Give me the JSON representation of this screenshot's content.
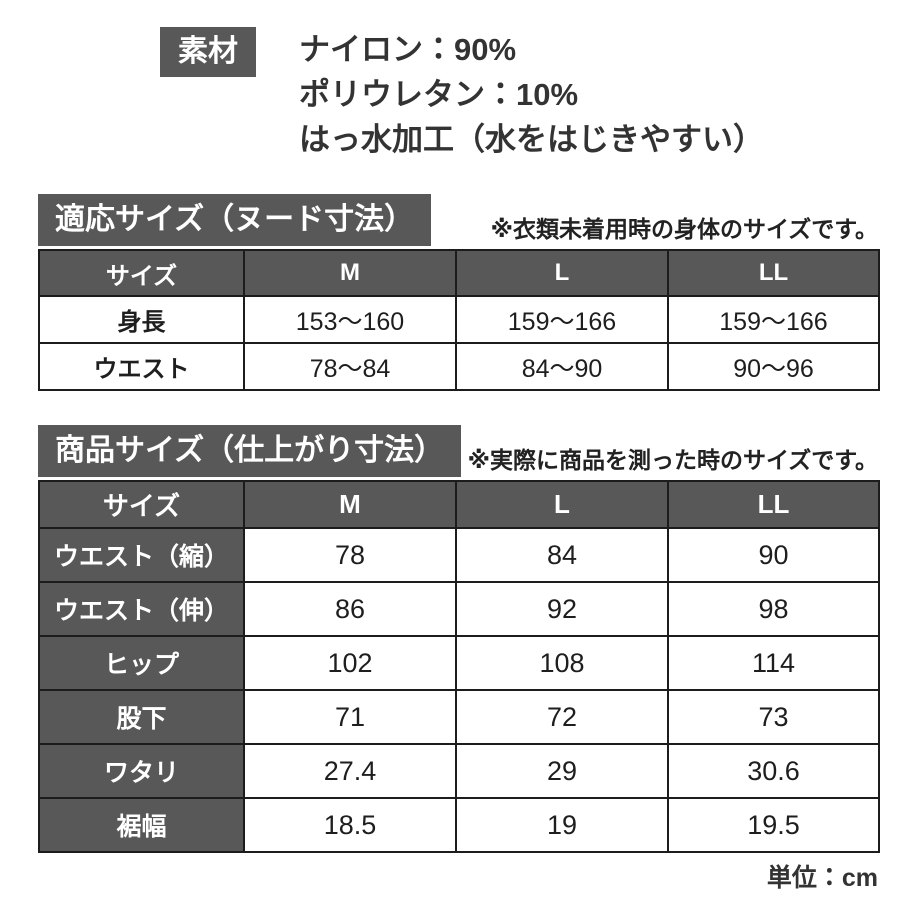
{
  "colors": {
    "badge_background": "#595858",
    "badge_text": "#ffffff",
    "table_border": "#1c1c1c",
    "body_text": "#1e1e1e"
  },
  "material": {
    "label": "素材",
    "lines": [
      "ナイロン：90%",
      "ポリウレタン：10%",
      "はっ水加工（水をはじきやすい）"
    ]
  },
  "nude_size": {
    "title": "適応サイズ（ヌード寸法）",
    "note": "※衣類未着用時の身体のサイズです。",
    "table": {
      "header": [
        "サイズ",
        "M",
        "L",
        "LL"
      ],
      "rows": [
        {
          "label": "身長",
          "values": [
            "153～160",
            "159～166",
            "159～166"
          ]
        },
        {
          "label": "ウエスト",
          "values": [
            "78～84",
            "84～90",
            "90～96"
          ]
        }
      ]
    }
  },
  "product_size": {
    "title": "商品サイズ（仕上がり寸法）",
    "note": "※実際に商品を測った時のサイズです。",
    "table": {
      "header": [
        "サイズ",
        "M",
        "L",
        "LL"
      ],
      "rows": [
        {
          "label": "ウエスト（縮）",
          "values": [
            "78",
            "84",
            "90"
          ]
        },
        {
          "label": "ウエスト（伸）",
          "values": [
            "86",
            "92",
            "98"
          ]
        },
        {
          "label": "ヒップ",
          "values": [
            "102",
            "108",
            "114"
          ]
        },
        {
          "label": "股下",
          "values": [
            "71",
            "72",
            "73"
          ]
        },
        {
          "label": "ワタリ",
          "values": [
            "27.4",
            "29",
            "30.6"
          ]
        },
        {
          "label": "裾幅",
          "values": [
            "18.5",
            "19",
            "19.5"
          ]
        }
      ]
    }
  },
  "footer": {
    "unit": "単位：cm"
  }
}
